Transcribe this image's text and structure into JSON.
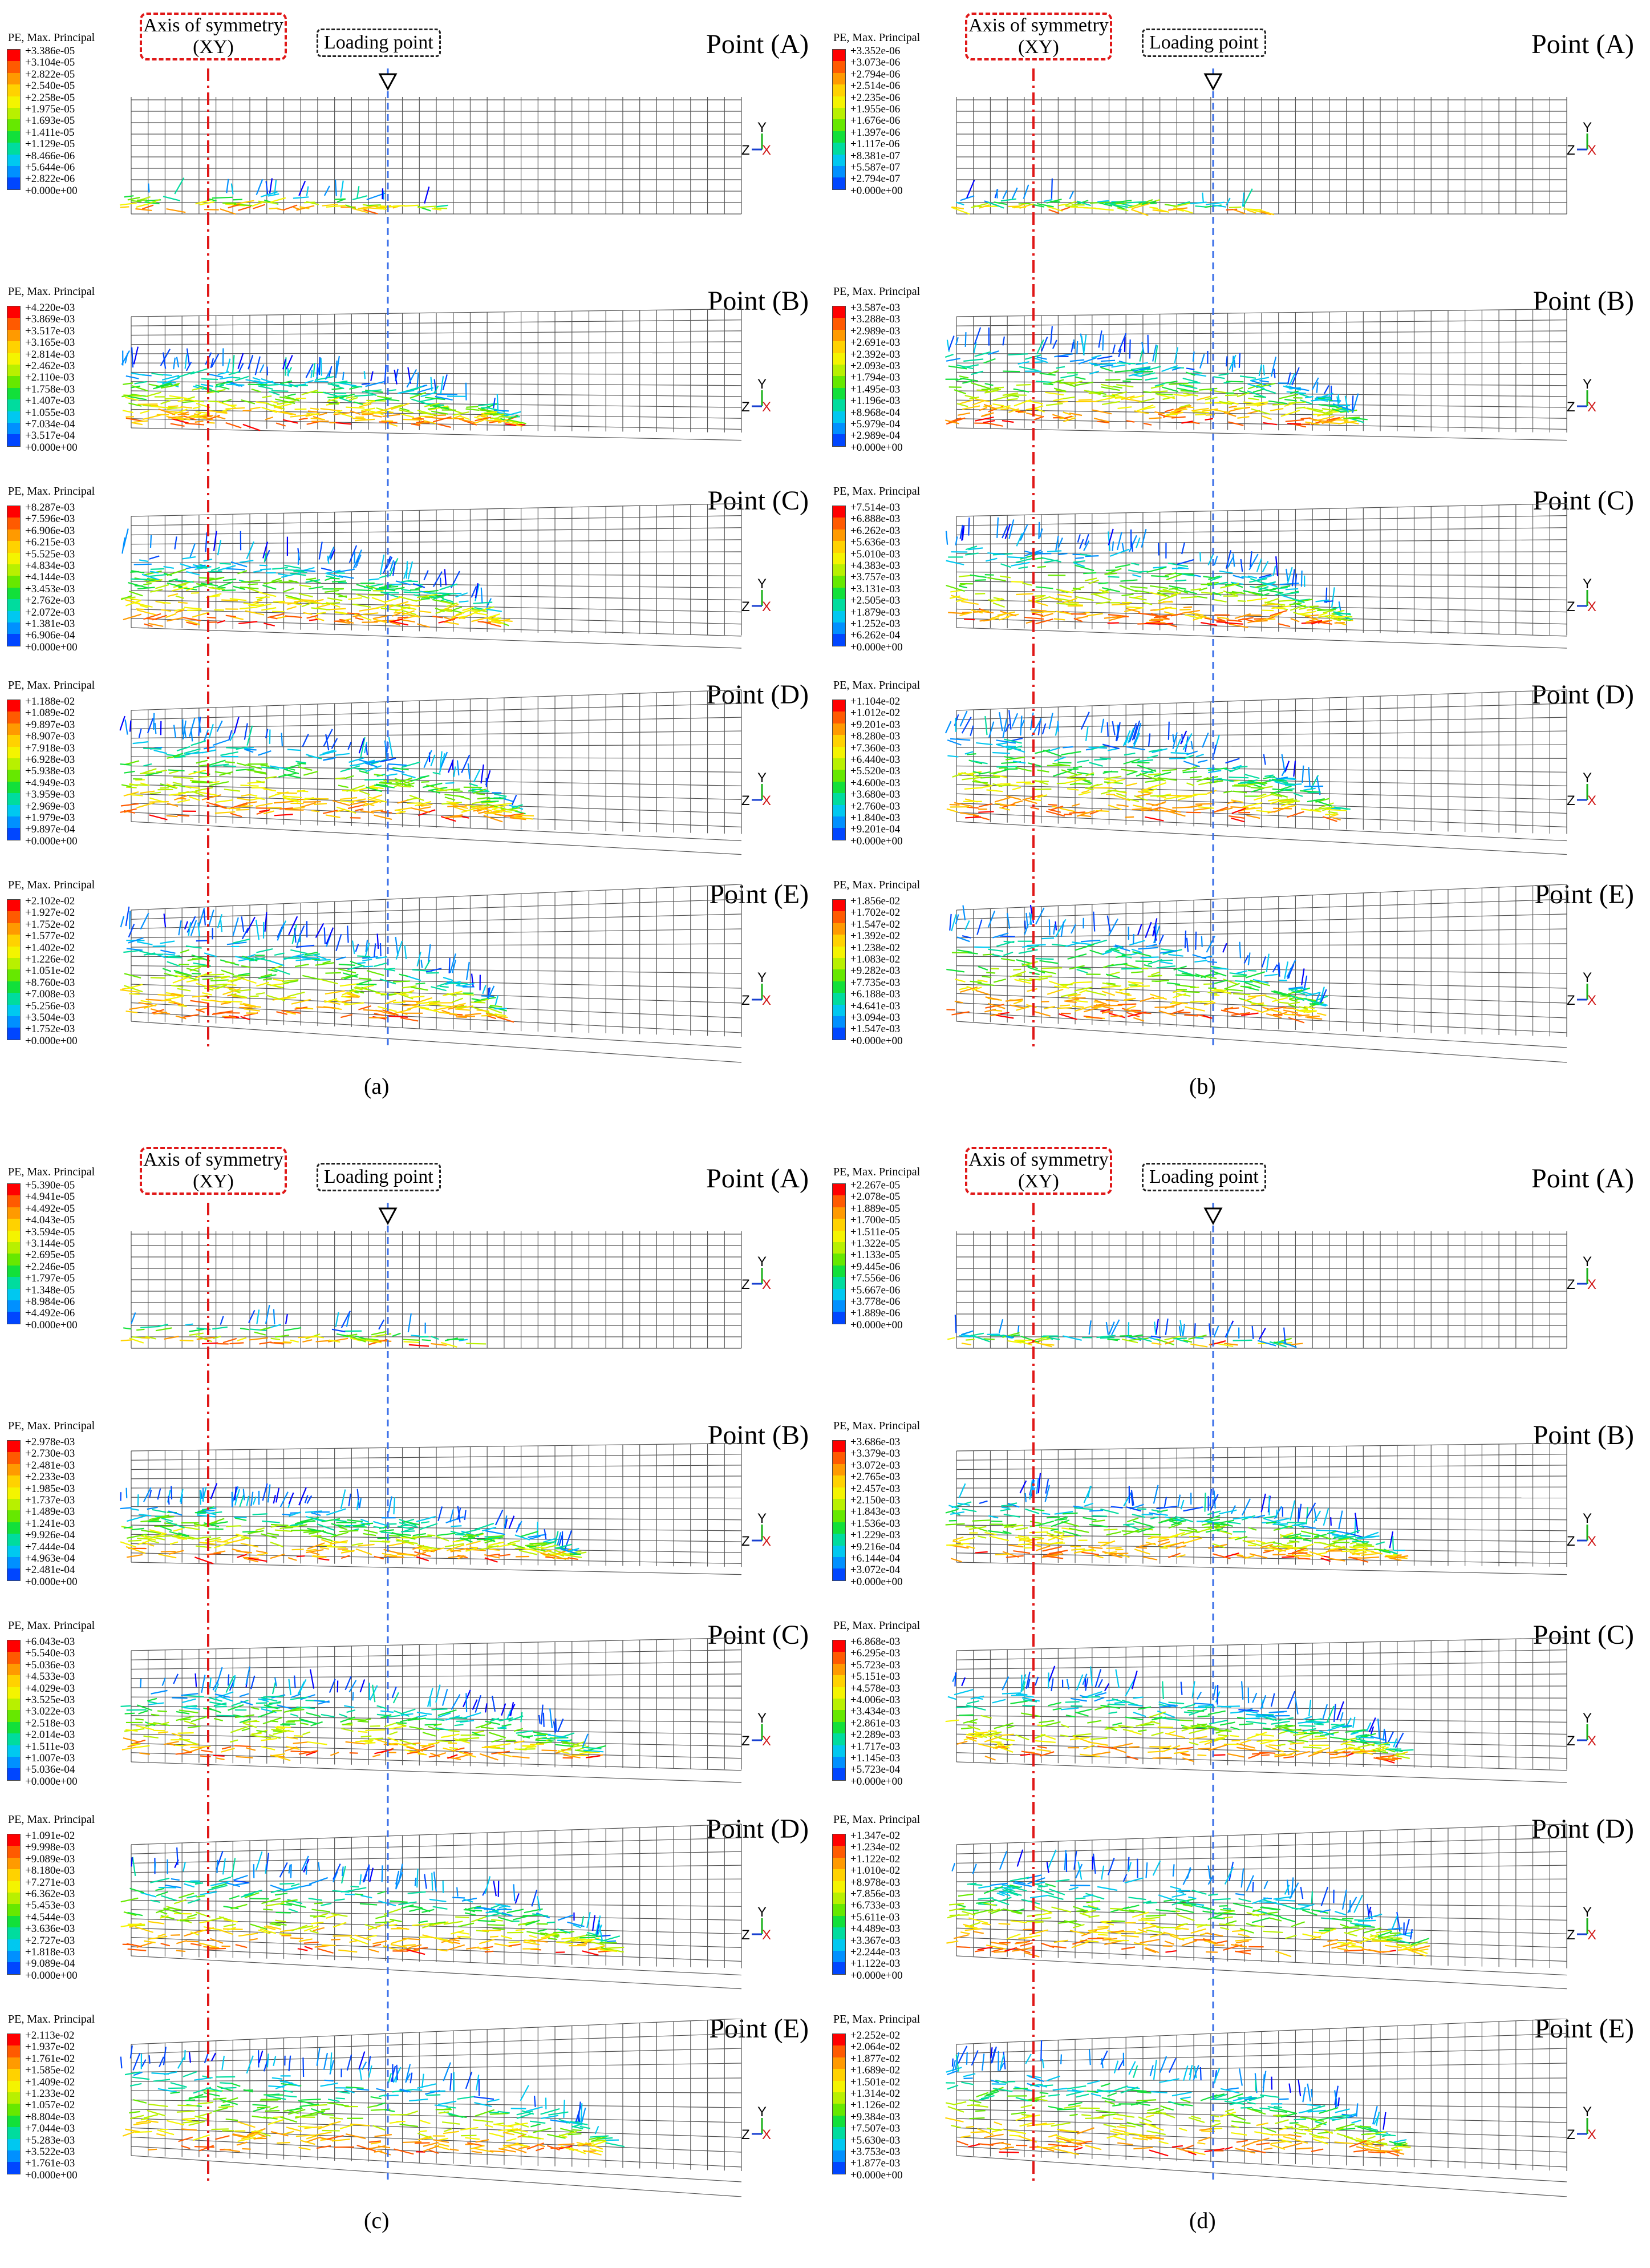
{
  "figure": {
    "panels": [
      {
        "caption": "(a)",
        "axis_symmetry_label": "Axis of symmetry (XY)",
        "loading_label": "Loading point",
        "show_header": true,
        "blocks": [
          {
            "point": "Point (A)",
            "legend_title": "PE, Max. Principal",
            "legend": [
              "+3.386e-05",
              "+3.104e-05",
              "+2.822e-05",
              "+2.540e-05",
              "+2.258e-05",
              "+1.975e-05",
              "+1.693e-05",
              "+1.411e-05",
              "+1.129e-05",
              "+8.466e-06",
              "+5.644e-06",
              "+2.822e-06",
              "+0.000e+00"
            ],
            "damage_extent": 0.52,
            "damage_height": 0.12,
            "tilt": 0
          },
          {
            "point": "Point (B)",
            "legend_title": "PE, Max. Principal",
            "legend": [
              "+4.220e-03",
              "+3.869e-03",
              "+3.517e-03",
              "+3.165e-03",
              "+2.814e-03",
              "+2.462e-03",
              "+2.110e-03",
              "+1.758e-03",
              "+1.407e-03",
              "+1.055e-03",
              "+7.034e-04",
              "+3.517e-04",
              "+0.000e+00"
            ],
            "damage_extent": 0.62,
            "damage_height": 0.55,
            "tilt": 0.3
          },
          {
            "point": "Point (C)",
            "legend_title": "PE, Max. Principal",
            "legend": [
              "+8.287e-03",
              "+7.596e-03",
              "+6.906e-03",
              "+6.215e-03",
              "+5.525e-03",
              "+4.834e-03",
              "+4.144e-03",
              "+3.453e-03",
              "+2.762e-03",
              "+2.072e-03",
              "+1.381e-03",
              "+6.906e-04",
              "+0.000e+00"
            ],
            "damage_extent": 0.6,
            "damage_height": 0.7,
            "tilt": 0.5
          },
          {
            "point": "Point (D)",
            "legend_title": "PE, Max. Principal",
            "legend": [
              "+1.188e-02",
              "+1.089e-02",
              "+9.897e-03",
              "+8.907e-03",
              "+7.918e-03",
              "+6.928e-03",
              "+5.938e-03",
              "+4.949e-03",
              "+3.959e-03",
              "+2.969e-03",
              "+1.979e-03",
              "+9.897e-04",
              "+0.000e+00"
            ],
            "damage_extent": 0.63,
            "damage_height": 0.8,
            "tilt": 0.8
          },
          {
            "point": "Point (E)",
            "legend_title": "PE, Max. Principal",
            "legend": [
              "+2.102e-02",
              "+1.927e-02",
              "+1.752e-02",
              "+1.577e-02",
              "+1.402e-02",
              "+1.226e-02",
              "+1.051e-02",
              "+8.760e-03",
              "+7.008e-03",
              "+5.256e-03",
              "+3.504e-03",
              "+1.752e-03",
              "+0.000e+00"
            ],
            "damage_extent": 0.6,
            "damage_height": 0.85,
            "tilt": 1.0
          }
        ]
      },
      {
        "caption": "(b)",
        "axis_symmetry_label": "Axis of symmetry (XY)",
        "loading_label": "Loading point",
        "show_header": true,
        "blocks": [
          {
            "point": "Point (A)",
            "legend_title": "PE, Max. Principal",
            "legend": [
              "+3.352e-06",
              "+3.073e-06",
              "+2.794e-06",
              "+2.514e-06",
              "+2.235e-06",
              "+1.955e-06",
              "+1.676e-06",
              "+1.397e-06",
              "+1.117e-06",
              "+8.381e-07",
              "+5.587e-07",
              "+2.794e-07",
              "+0.000e+00"
            ],
            "damage_extent": 0.5,
            "damage_height": 0.08,
            "tilt": 0
          },
          {
            "point": "Point (B)",
            "legend_title": "PE, Max. Principal",
            "legend": [
              "+3.587e-03",
              "+3.288e-03",
              "+2.989e-03",
              "+2.691e-03",
              "+2.392e-03",
              "+2.093e-03",
              "+1.794e-03",
              "+1.495e-03",
              "+1.196e-03",
              "+8.968e-04",
              "+5.979e-04",
              "+2.989e-04",
              "+0.000e+00"
            ],
            "damage_extent": 0.65,
            "damage_height": 0.75,
            "tilt": 0.3
          },
          {
            "point": "Point (C)",
            "legend_title": "PE, Max. Principal",
            "legend": [
              "+7.514e-03",
              "+6.888e-03",
              "+6.262e-03",
              "+5.636e-03",
              "+5.010e-03",
              "+4.383e-03",
              "+3.757e-03",
              "+3.131e-03",
              "+2.505e-03",
              "+1.879e-03",
              "+1.252e-03",
              "+6.262e-04",
              "+0.000e+00"
            ],
            "damage_extent": 0.63,
            "damage_height": 0.8,
            "tilt": 0.5
          },
          {
            "point": "Point (D)",
            "legend_title": "PE, Max. Principal",
            "legend": [
              "+1.104e-02",
              "+1.012e-02",
              "+9.201e-03",
              "+8.280e-03",
              "+7.360e-03",
              "+6.440e-03",
              "+5.520e-03",
              "+4.600e-03",
              "+3.680e-03",
              "+2.760e-03",
              "+1.840e-03",
              "+9.201e-04",
              "+0.000e+00"
            ],
            "damage_extent": 0.62,
            "damage_height": 0.85,
            "tilt": 0.8
          },
          {
            "point": "Point (E)",
            "legend_title": "PE, Max. Principal",
            "legend": [
              "+1.856e-02",
              "+1.702e-02",
              "+1.547e-02",
              "+1.392e-02",
              "+1.238e-02",
              "+1.083e-02",
              "+9.282e-03",
              "+7.735e-03",
              "+6.188e-03",
              "+4.641e-03",
              "+3.094e-03",
              "+1.547e-03",
              "+0.000e+00"
            ],
            "damage_extent": 0.6,
            "damage_height": 0.88,
            "tilt": 1.0
          }
        ]
      },
      {
        "caption": "(c)",
        "axis_symmetry_label": "Axis of symmetry (XY)",
        "loading_label": "Loading point",
        "show_header": true,
        "blocks": [
          {
            "point": "Point (A)",
            "legend_title": "PE, Max. Principal",
            "legend": [
              "+5.390e-05",
              "+4.941e-05",
              "+4.492e-05",
              "+4.043e-05",
              "+3.594e-05",
              "+3.144e-05",
              "+2.695e-05",
              "+2.246e-05",
              "+1.797e-05",
              "+1.348e-05",
              "+8.984e-06",
              "+4.492e-06",
              "+0.000e+00"
            ],
            "damage_extent": 0.55,
            "damage_height": 0.15,
            "tilt": 0
          },
          {
            "point": "Point (B)",
            "legend_title": "PE, Max. Principal",
            "legend": [
              "+2.978e-03",
              "+2.730e-03",
              "+2.481e-03",
              "+2.233e-03",
              "+1.985e-03",
              "+1.737e-03",
              "+1.489e-03",
              "+1.241e-03",
              "+9.926e-04",
              "+7.444e-04",
              "+4.963e-04",
              "+2.481e-04",
              "+0.000e+00"
            ],
            "damage_extent": 0.72,
            "damage_height": 0.55,
            "tilt": 0.3
          },
          {
            "point": "Point (C)",
            "legend_title": "PE, Max. Principal",
            "legend": [
              "+6.043e-03",
              "+5.540e-03",
              "+5.036e-03",
              "+4.533e-03",
              "+4.029e-03",
              "+3.525e-03",
              "+3.022e-03",
              "+2.518e-03",
              "+2.014e-03",
              "+1.511e-03",
              "+1.007e-03",
              "+5.036e-04",
              "+0.000e+00"
            ],
            "damage_extent": 0.75,
            "damage_height": 0.7,
            "tilt": 0.5
          },
          {
            "point": "Point (D)",
            "legend_title": "PE, Max. Principal",
            "legend": [
              "+1.091e-02",
              "+9.998e-03",
              "+9.089e-03",
              "+8.180e-03",
              "+7.271e-03",
              "+6.362e-03",
              "+5.453e-03",
              "+4.544e-03",
              "+3.636e-03",
              "+2.727e-03",
              "+1.818e-03",
              "+9.089e-04",
              "+0.000e+00"
            ],
            "damage_extent": 0.78,
            "damage_height": 0.8,
            "tilt": 0.8
          },
          {
            "point": "Point (E)",
            "legend_title": "PE, Max. Principal",
            "legend": [
              "+2.113e-02",
              "+1.937e-02",
              "+1.761e-02",
              "+1.585e-02",
              "+1.409e-02",
              "+1.233e-02",
              "+1.057e-02",
              "+8.804e-03",
              "+7.044e-03",
              "+5.283e-03",
              "+3.522e-03",
              "+1.761e-03",
              "+0.000e+00"
            ],
            "damage_extent": 0.78,
            "damage_height": 0.85,
            "tilt": 1.0
          }
        ]
      },
      {
        "caption": "(d)",
        "axis_symmetry_label": "Axis of symmetry (XY)",
        "loading_label": "Loading point",
        "show_header": true,
        "blocks": [
          {
            "point": "Point (A)",
            "legend_title": "PE, Max. Principal",
            "legend": [
              "+2.267e-05",
              "+2.078e-05",
              "+1.889e-05",
              "+1.700e-05",
              "+1.511e-05",
              "+1.322e-05",
              "+1.133e-05",
              "+9.445e-06",
              "+7.556e-06",
              "+5.667e-06",
              "+3.778e-06",
              "+1.889e-06",
              "+0.000e+00"
            ],
            "damage_extent": 0.55,
            "damage_height": 0.08,
            "tilt": 0
          },
          {
            "point": "Point (B)",
            "legend_title": "PE, Max. Principal",
            "legend": [
              "+3.686e-03",
              "+3.379e-03",
              "+3.072e-03",
              "+2.765e-03",
              "+2.457e-03",
              "+2.150e-03",
              "+1.843e-03",
              "+1.536e-03",
              "+1.229e-03",
              "+9.216e-04",
              "+6.144e-04",
              "+3.072e-04",
              "+0.000e+00"
            ],
            "damage_extent": 0.72,
            "damage_height": 0.6,
            "tilt": 0.3
          },
          {
            "point": "Point (C)",
            "legend_title": "PE, Max. Principal",
            "legend": [
              "+6.868e-03",
              "+6.295e-03",
              "+5.723e-03",
              "+5.151e-03",
              "+4.578e-03",
              "+4.006e-03",
              "+3.434e-03",
              "+2.861e-03",
              "+2.289e-03",
              "+1.717e-03",
              "+1.145e-03",
              "+5.723e-04",
              "+0.000e+00"
            ],
            "damage_extent": 0.72,
            "damage_height": 0.7,
            "tilt": 0.5
          },
          {
            "point": "Point (D)",
            "legend_title": "PE, Max. Principal",
            "legend": [
              "+1.347e-02",
              "+1.234e-02",
              "+1.122e-02",
              "+1.010e-02",
              "+8.978e-03",
              "+7.856e-03",
              "+6.733e-03",
              "+5.611e-03",
              "+4.489e-03",
              "+3.367e-03",
              "+2.244e-03",
              "+1.122e-03",
              "+0.000e+00"
            ],
            "damage_extent": 0.75,
            "damage_height": 0.8,
            "tilt": 0.8
          },
          {
            "point": "Point (E)",
            "legend_title": "PE, Max. Principal",
            "legend": [
              "+2.252e-02",
              "+2.064e-02",
              "+1.877e-02",
              "+1.689e-02",
              "+1.501e-02",
              "+1.314e-02",
              "+1.126e-02",
              "+9.384e-03",
              "+7.507e-03",
              "+5.630e-03",
              "+3.753e-03",
              "+1.877e-03",
              "+0.000e+00"
            ],
            "damage_extent": 0.72,
            "damage_height": 0.85,
            "tilt": 1.0
          }
        ]
      }
    ],
    "triad": {
      "y": "Y",
      "z": "Z",
      "x": "X"
    },
    "legend_colors": [
      "#ff0000",
      "#ff5a00",
      "#ff9a00",
      "#ffd200",
      "#f4f400",
      "#b8f000",
      "#66e800",
      "#12e03a",
      "#00dc9e",
      "#00c8f0",
      "#0090ff",
      "#0046ff",
      "#0000ff"
    ],
    "symmetry_color": "#e01818",
    "loading_color": "#3a6fe8"
  }
}
